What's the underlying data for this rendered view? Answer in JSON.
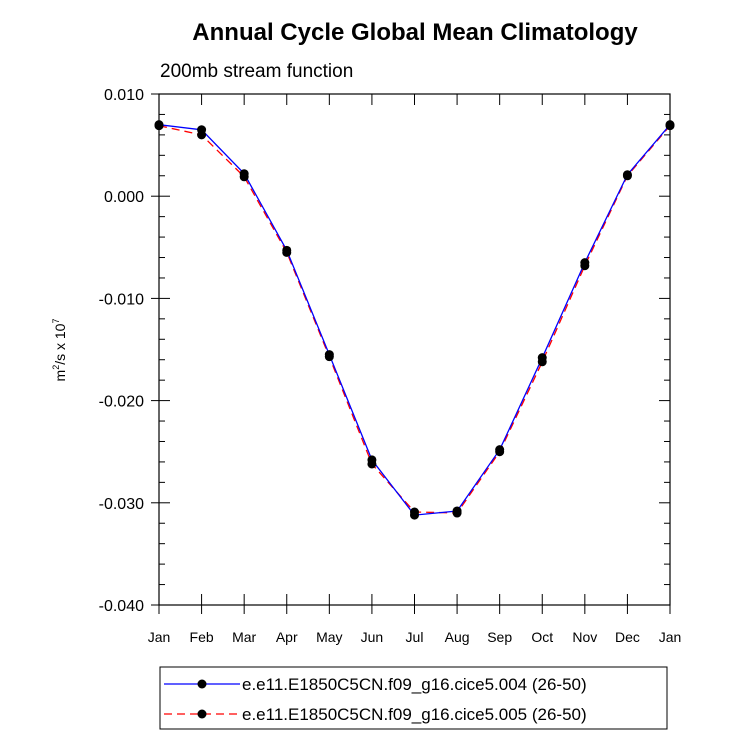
{
  "chart_data": {
    "type": "line",
    "title": "Annual Cycle Global Mean Climatology",
    "subtitle": "200mb stream function",
    "ylabel": "m²/s x 10⁷",
    "ylabel_parts": {
      "m": "m",
      "sup1": "2",
      "mid": "/s x 10",
      "sup2": "7"
    },
    "xlabel": "",
    "categories": [
      "Jan",
      "Feb",
      "Mar",
      "Apr",
      "May",
      "Jun",
      "Jul",
      "Aug",
      "Sep",
      "Oct",
      "Nov",
      "Dec",
      "Jan"
    ],
    "ylim": [
      -0.04,
      0.01
    ],
    "yticks": [
      0.01,
      0.0,
      -0.01,
      -0.02,
      -0.03,
      -0.04
    ],
    "ytick_labels": [
      "0.010",
      "0.000",
      "-0.010",
      "-0.020",
      "-0.030",
      "-0.040"
    ],
    "series": [
      {
        "name": "e.e11.E1850C5CN.f09_g16.cice5.004 (26-50)",
        "color": "#0000ff",
        "dash": "solid",
        "values": [
          0.007,
          0.0065,
          0.0022,
          -0.0053,
          -0.0155,
          -0.0258,
          -0.0312,
          -0.0308,
          -0.0248,
          -0.0158,
          -0.0065,
          0.0021,
          0.007
        ]
      },
      {
        "name": "e.e11.E1850C5CN.f09_g16.cice5.005 (26-50)",
        "color": "#ff0000",
        "dash": "dashed",
        "values": [
          0.0069,
          0.006,
          0.0019,
          -0.0055,
          -0.0157,
          -0.0262,
          -0.0309,
          -0.031,
          -0.025,
          -0.0162,
          -0.0068,
          0.002,
          0.0069
        ]
      }
    ],
    "legend_position": "bottom"
  }
}
